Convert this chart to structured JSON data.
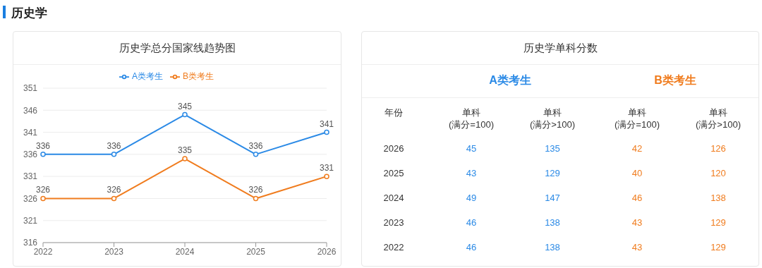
{
  "chart_data": [
    {
      "type": "line",
      "title": "历史学总分国家线趋势图",
      "annotations": [
        "历史学"
      ],
      "categories": [
        "2022",
        "2023",
        "2024",
        "2025",
        "2026"
      ],
      "series": [
        {
          "name": "A类考生",
          "color": "#2b8ae6",
          "values": [
            336,
            336,
            345,
            336,
            341
          ]
        },
        {
          "name": "B类考生",
          "color": "#f07c1e",
          "values": [
            326,
            326,
            335,
            326,
            331
          ]
        }
      ],
      "ylim": [
        316,
        351
      ],
      "yticks": [
        316,
        321,
        326,
        331,
        336,
        341,
        346,
        351
      ],
      "grid": "y",
      "legend": "top",
      "marker": "circle",
      "line_style": "solid",
      "data_labels": true
    },
    {
      "type": "heatmap",
      "title": "历史学单科分数",
      "annotations": [
        "A类考生",
        "B类考生"
      ],
      "ylabel": "年份",
      "categories": [
        "单科\n(满分=100)",
        "单科\n(满分>100)",
        "单科\n(满分=100)",
        "单科\n(满分>100)"
      ],
      "y_categories": [
        "2026",
        "2025",
        "2024",
        "2023",
        "2022"
      ],
      "cells": [
        [
          45,
          135,
          42,
          126
        ],
        [
          43,
          129,
          40,
          120
        ],
        [
          49,
          147,
          46,
          138
        ],
        [
          46,
          138,
          43,
          129
        ],
        [
          46,
          138,
          43,
          129
        ]
      ],
      "data_labels": true
    }
  ]
}
